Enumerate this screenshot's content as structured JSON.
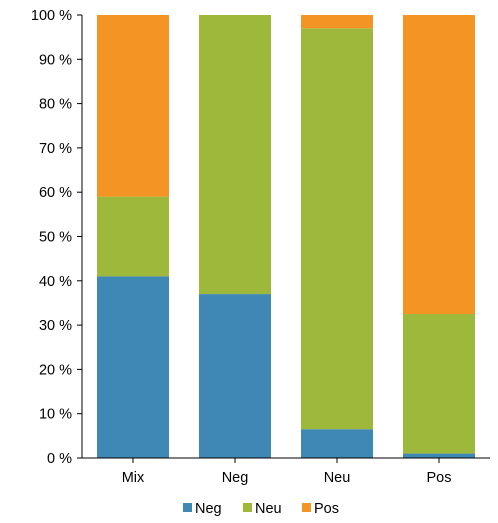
{
  "chart_data": {
    "type": "bar",
    "stacked": true,
    "percent": true,
    "categories": [
      "Mix",
      "Neg",
      "Neu",
      "Pos"
    ],
    "series": [
      {
        "name": "Neg",
        "color": "#3F87B5",
        "values": [
          41,
          37,
          6.5,
          1
        ]
      },
      {
        "name": "Neu",
        "color": "#9DB83B",
        "values": [
          18,
          63,
          90.5,
          31.5
        ]
      },
      {
        "name": "Pos",
        "color": "#F39424",
        "values": [
          41,
          0,
          3,
          67.5
        ]
      }
    ],
    "ylim": [
      0,
      100
    ],
    "yticks": [
      0,
      10,
      20,
      30,
      40,
      50,
      60,
      70,
      80,
      90,
      100
    ],
    "ytick_labels": [
      "0 %",
      "10 %",
      "20 %",
      "30 %",
      "40 %",
      "50 %",
      "60 %",
      "70 %",
      "80 %",
      "90 %",
      "100 %"
    ],
    "grid": false,
    "legend_position": "bottom",
    "title": "",
    "xlabel": "",
    "ylabel": ""
  }
}
